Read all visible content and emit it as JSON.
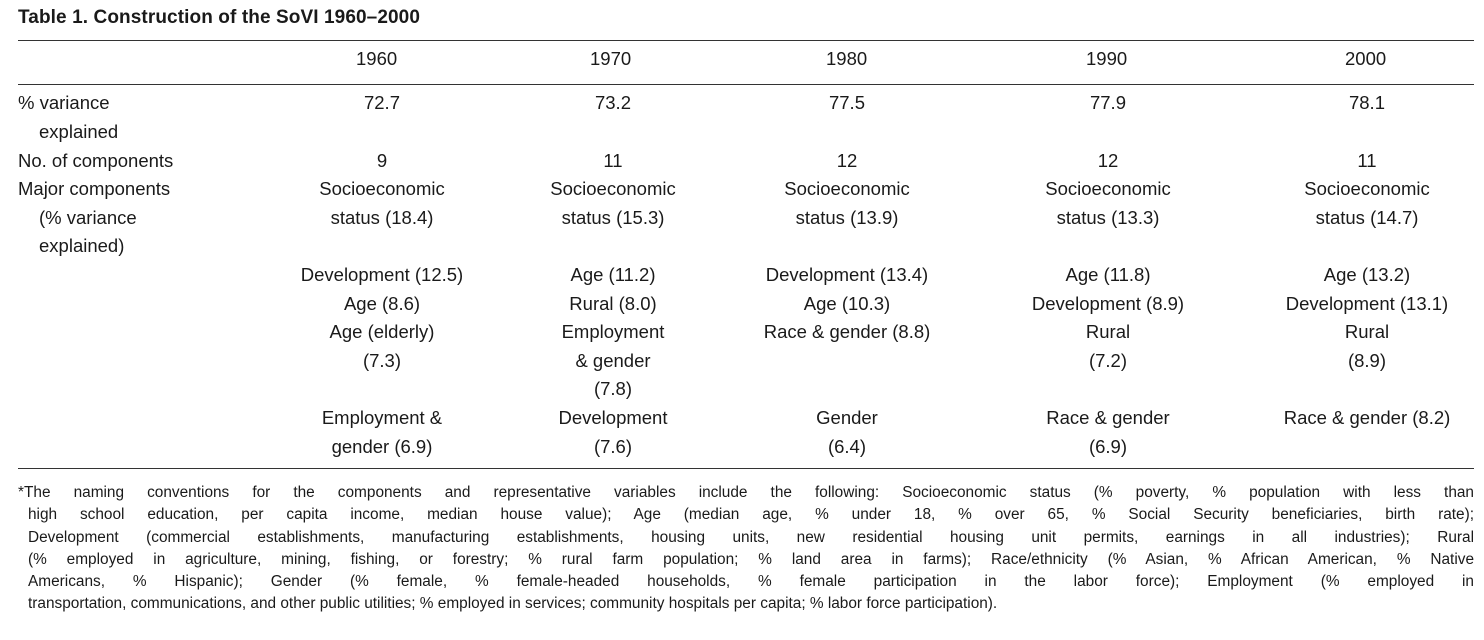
{
  "table": {
    "title": "Table 1. Construction of the SoVI 1960–2000",
    "years": [
      "1960",
      "1970",
      "1980",
      "1990",
      "2000"
    ],
    "row_labels": {
      "variance_l1": "% variance",
      "variance_l2": "explained",
      "components": "No. of components",
      "major_l1": "Major components",
      "major_l2": "(% variance",
      "major_l3": "explained)"
    },
    "variance": [
      "72.7",
      "73.2",
      "77.5",
      "77.9",
      "78.1"
    ],
    "num_components": [
      "9",
      "11",
      "12",
      "12",
      "11"
    ],
    "major": [
      {
        "g1": [
          "Socioeconomic",
          "status (18.4)"
        ],
        "g2": [
          "Development (12.5)",
          "Age (8.6)",
          "Age (elderly)",
          "(7.3)"
        ],
        "g3": [
          "Employment &",
          "gender (6.9)"
        ]
      },
      {
        "g1": [
          "Socioeconomic",
          "status (15.3)"
        ],
        "g2": [
          "Age (11.2)",
          "Rural (8.0)",
          "Employment",
          "& gender",
          "(7.8)"
        ],
        "g3": [
          "Development",
          "(7.6)"
        ]
      },
      {
        "g1": [
          "Socioeconomic",
          "status (13.9)"
        ],
        "g2": [
          "Development (13.4)",
          "Age (10.3)",
          "Race & gender (8.8)"
        ],
        "g3": [
          "Gender",
          "(6.4)"
        ]
      },
      {
        "g1": [
          "Socioeconomic",
          "status (13.3)"
        ],
        "g2": [
          "Age (11.8)",
          "Development (8.9)",
          "Rural",
          "(7.2)"
        ],
        "g3": [
          "Race & gender",
          "(6.9)"
        ]
      },
      {
        "g1": [
          "Socioeconomic",
          "status (14.7)"
        ],
        "g2": [
          "Age (13.2)",
          "Development (13.1)",
          "Rural",
          "(8.9)"
        ],
        "g3": [
          "Race & gender (8.2)"
        ]
      }
    ]
  },
  "footnote": {
    "lines": [
      "*The naming conventions for the components and representative variables include the following: Socioeconomic status (% poverty, % population with less than",
      "high school education, per capita income, median house value); Age (median age, % under 18, % over 65, % Social Security beneficiaries, birth rate);",
      "Development (commercial establishments, manufacturing establishments, housing units, new residential housing unit permits, earnings in all industries); Rural",
      "(% employed in agriculture, mining, fishing, or forestry; % rural farm population; % land area in farms); Race/ethnicity (% Asian, % African American, % Native",
      "Americans, % Hispanic); Gender (% female, % female-headed households, % female participation in the labor force); Employment (% employed in",
      "transportation, communications, and other public utilities; % employed in services; community hospitals per capita; % labor force participation)."
    ]
  }
}
